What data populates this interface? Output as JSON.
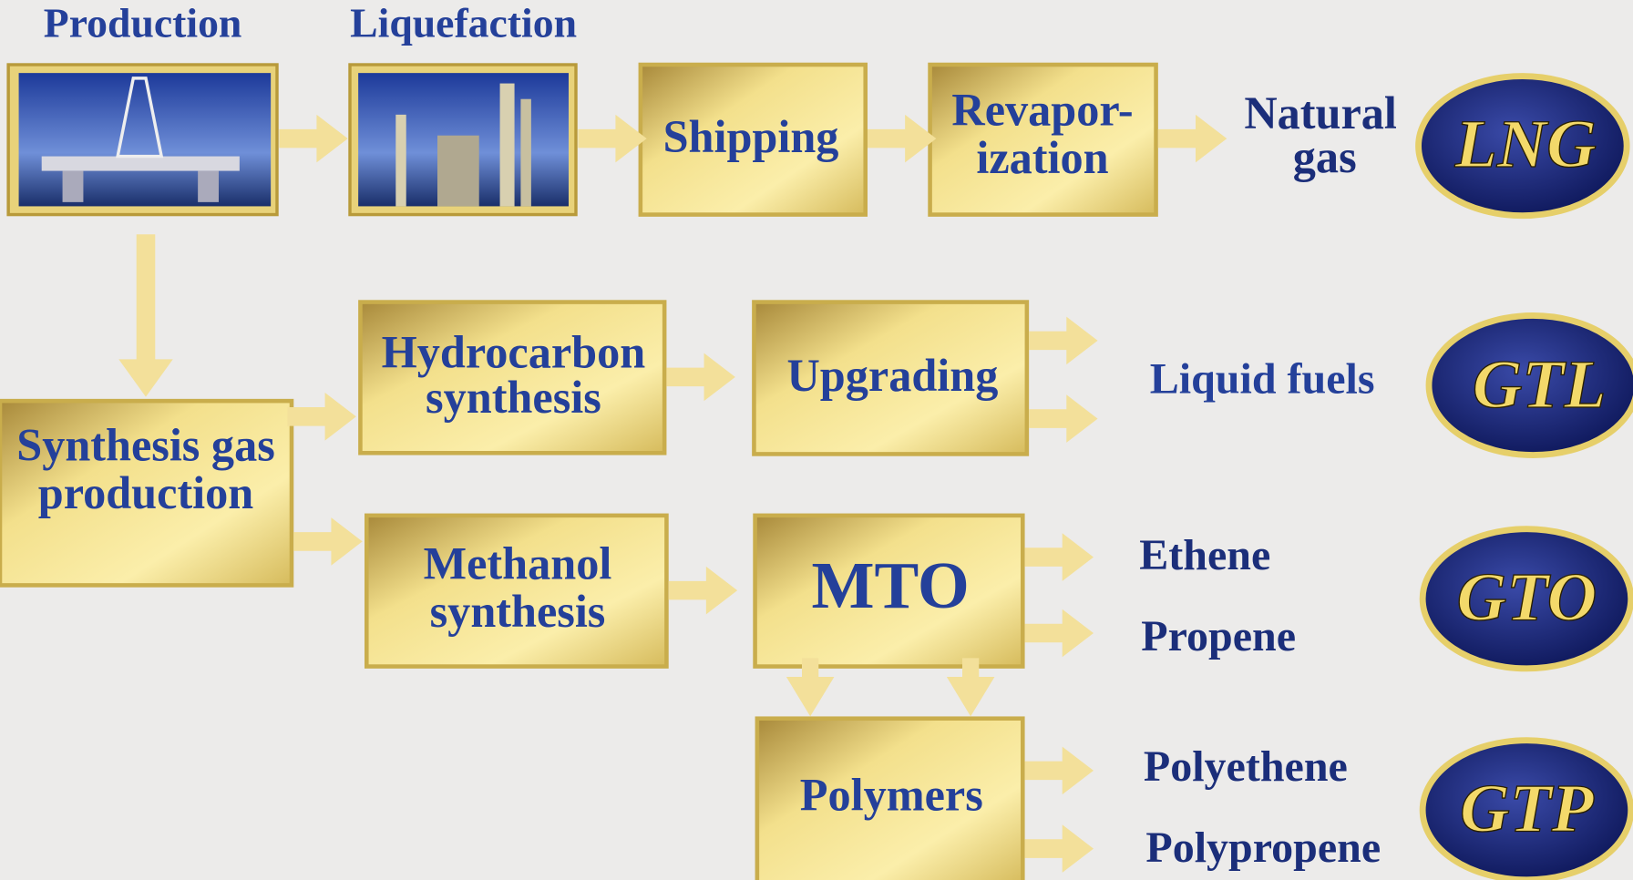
{
  "headers": [
    "Production",
    "Liquefaction"
  ],
  "nodes": [
    {
      "lines": [
        "Shipping"
      ]
    },
    {
      "lines": [
        "Revapor-",
        "ization"
      ]
    },
    {
      "lines": [
        "Synthesis gas",
        "production"
      ]
    },
    {
      "lines": [
        "Hydrocarbon",
        "synthesis"
      ]
    },
    {
      "lines": [
        "Upgrading"
      ]
    },
    {
      "lines": [
        "Methanol",
        "synthesis"
      ]
    },
    {
      "lines": [
        "MTO"
      ]
    },
    {
      "lines": [
        "Polymers"
      ]
    }
  ],
  "products": [
    {
      "lines": [
        "Natural",
        "gas"
      ]
    },
    {
      "lines": [
        "Liquid fuels"
      ]
    },
    {
      "lines": [
        "Ethene"
      ]
    },
    {
      "lines": [
        "Propene"
      ]
    },
    {
      "lines": [
        "Polyethene"
      ]
    },
    {
      "lines": [
        "Polypropene"
      ]
    }
  ],
  "badges": [
    "LNG",
    "GTL",
    "GTO",
    "GTP"
  ]
}
